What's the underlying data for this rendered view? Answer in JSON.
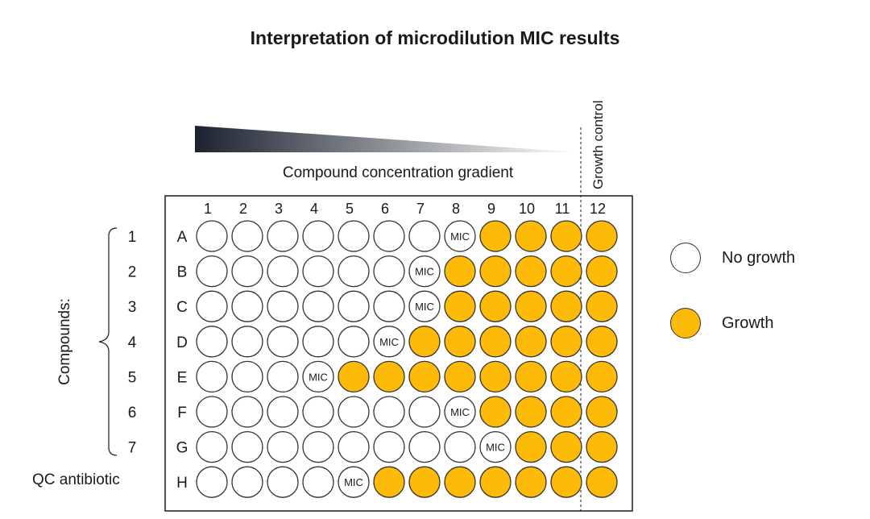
{
  "title": "Interpretation of microdilution MIC results",
  "gradient_label": "Compound concentration gradient",
  "growth_control_label": "Growth control",
  "compounds_label": "Compounds:",
  "qc_label": "QC antibiotic",
  "mic_text": "MIC",
  "column_labels": [
    "1",
    "2",
    "3",
    "4",
    "5",
    "6",
    "7",
    "8",
    "9",
    "10",
    "11",
    "12"
  ],
  "row_labels": [
    "A",
    "B",
    "C",
    "D",
    "E",
    "F",
    "G",
    "H"
  ],
  "compound_numbers": [
    "1",
    "2",
    "3",
    "4",
    "5",
    "6",
    "7"
  ],
  "rows": [
    {
      "row": "A",
      "mic_column": 8
    },
    {
      "row": "B",
      "mic_column": 7
    },
    {
      "row": "C",
      "mic_column": 7
    },
    {
      "row": "D",
      "mic_column": 6
    },
    {
      "row": "E",
      "mic_column": 4
    },
    {
      "row": "F",
      "mic_column": 8
    },
    {
      "row": "G",
      "mic_column": 9
    },
    {
      "row": "H",
      "mic_column": 5
    }
  ],
  "legend": [
    {
      "label": "No growth",
      "state": "no-growth"
    },
    {
      "label": "Growth",
      "state": "growth"
    }
  ],
  "colors": {
    "growth": "#FDBB08",
    "no_growth": "#FFFFFF",
    "well_stroke": "#333333",
    "gradient_dark": "#1c2330",
    "gradient_light": "#ffffff"
  }
}
